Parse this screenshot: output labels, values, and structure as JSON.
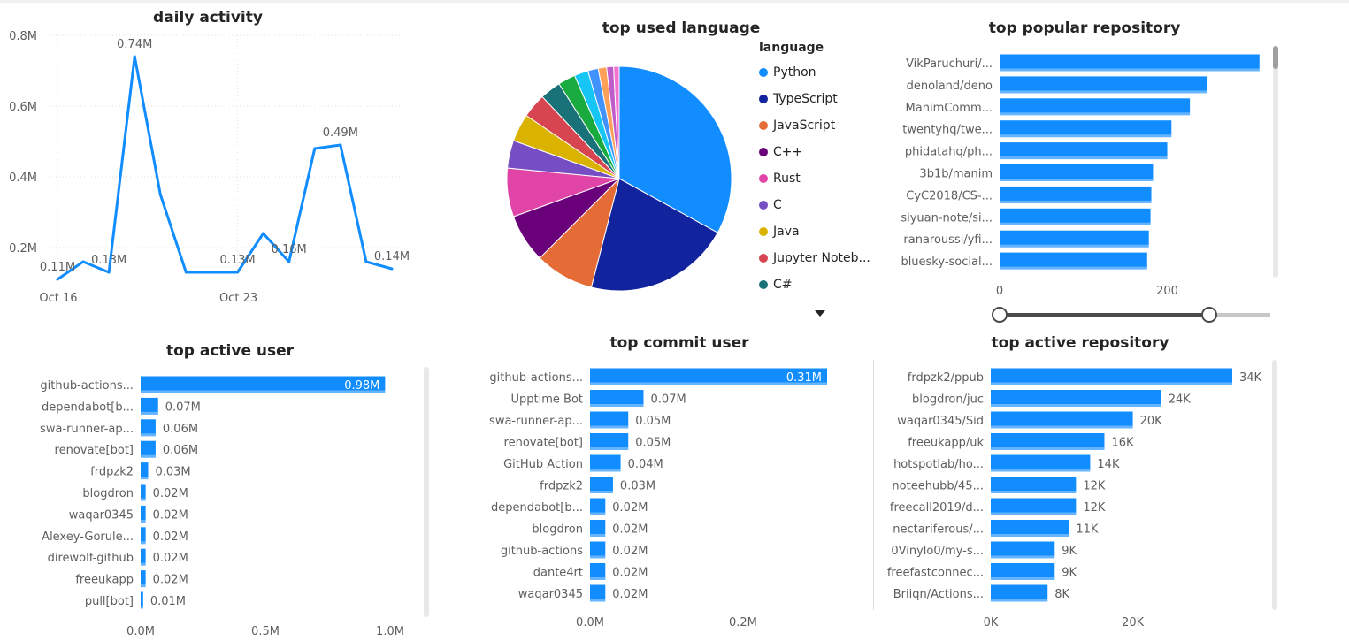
{
  "colors": {
    "bar": "#118DFF",
    "line": "#118DFF",
    "text": "#605E5C",
    "title": "#252423",
    "grid": "#e1dfdd"
  },
  "panels": {
    "daily_activity": {
      "title": "daily activity"
    },
    "top_language": {
      "title": "top used language",
      "legend_title": "language"
    },
    "top_popular_repo": {
      "title": "top popular repository"
    },
    "top_active_user": {
      "title": "top active user"
    },
    "top_commit_user": {
      "title": "top commit user"
    },
    "top_active_repo": {
      "title": "top active repository"
    }
  },
  "chart_data": [
    {
      "id": "daily_activity",
      "type": "line",
      "title": "daily activity",
      "values": [
        0.11,
        0.16,
        0.13,
        0.74,
        0.35,
        0.13,
        0.13,
        0.13,
        0.24,
        0.16,
        0.48,
        0.49,
        0.16,
        0.14
      ],
      "data_labels": [
        {
          "index": 0,
          "text": "0.11M"
        },
        {
          "index": 2,
          "text": "0.13M"
        },
        {
          "index": 3,
          "text": "0.74M"
        },
        {
          "index": 7,
          "text": "0.13M"
        },
        {
          "index": 9,
          "text": "0.16M"
        },
        {
          "index": 11,
          "text": "0.49M"
        },
        {
          "index": 13,
          "text": "0.14M"
        }
      ],
      "x_ticks": [
        {
          "index": 0,
          "label": "Oct 16"
        },
        {
          "index": 7,
          "label": "Oct 23"
        }
      ],
      "y_ticks": [
        {
          "value": 0.2,
          "label": "0.2M"
        },
        {
          "value": 0.4,
          "label": "0.4M"
        },
        {
          "value": 0.6,
          "label": "0.6M"
        },
        {
          "value": 0.8,
          "label": "0.8M"
        }
      ],
      "ylim": [
        0.1,
        0.8
      ]
    },
    {
      "id": "top_language",
      "type": "pie",
      "title": "top used language",
      "legend_title": "language",
      "slices": [
        {
          "label": "Python",
          "value": 33,
          "color": "#118DFF"
        },
        {
          "label": "TypeScript",
          "value": 21,
          "color": "#12239E"
        },
        {
          "label": "JavaScript",
          "value": 8.5,
          "color": "#E66C37"
        },
        {
          "label": "C++",
          "value": 7,
          "color": "#6B007B"
        },
        {
          "label": "Rust",
          "value": 7,
          "color": "#E044A7"
        },
        {
          "label": "C",
          "value": 4,
          "color": "#744EC2"
        },
        {
          "label": "Java",
          "value": 4,
          "color": "#D9B300"
        },
        {
          "label": "Jupyter Noteb...",
          "value": 3.5,
          "color": "#D64550"
        },
        {
          "label": "C#",
          "value": 3,
          "color": "#197278"
        },
        {
          "label": "",
          "value": 2.5,
          "color": "#1AAB40"
        },
        {
          "label": "",
          "value": 2,
          "color": "#15C6F4"
        },
        {
          "label": "",
          "value": 1.5,
          "color": "#4092FF"
        },
        {
          "label": "",
          "value": 1.2,
          "color": "#FFA058"
        },
        {
          "label": "",
          "value": 1,
          "color": "#BE5DC9"
        },
        {
          "label": "",
          "value": 0.8,
          "color": "#F472D0"
        }
      ]
    },
    {
      "id": "top_popular_repo",
      "type": "bar",
      "orientation": "horizontal",
      "title": "top popular repository",
      "categories": [
        "VikParuchuri/...",
        "denoland/deno",
        "ManimComm...",
        "twentyhq/twe...",
        "phidatahq/ph...",
        "3b1b/manim",
        "CyC2018/CS-...",
        "siyuan-note/si...",
        "ranaroussi/yfi...",
        "bluesky-social..."
      ],
      "values": [
        310,
        248,
        227,
        205,
        200,
        183,
        181,
        180,
        178,
        176
      ],
      "x_ticks": [
        {
          "value": 0,
          "label": "0"
        },
        {
          "value": 200,
          "label": "200"
        }
      ],
      "xlim": [
        0,
        325
      ]
    },
    {
      "id": "top_active_user",
      "type": "bar",
      "orientation": "horizontal",
      "title": "top active user",
      "categories": [
        "github-actions...",
        "dependabot[b...",
        "swa-runner-ap...",
        "renovate[bot]",
        "frdpzk2",
        "blogdron",
        "waqar0345",
        "Alexey-Gorule...",
        "direwolf-github",
        "freeukapp",
        "pull[bot]"
      ],
      "values": [
        0.98,
        0.07,
        0.06,
        0.06,
        0.03,
        0.02,
        0.02,
        0.02,
        0.02,
        0.02,
        0.01
      ],
      "data_labels": [
        "0.98M",
        "0.07M",
        "0.06M",
        "0.06M",
        "0.03M",
        "0.02M",
        "0.02M",
        "0.02M",
        "0.02M",
        "0.02M",
        "0.01M"
      ],
      "x_ticks": [
        {
          "value": 0,
          "label": "0.0M"
        },
        {
          "value": 0.5,
          "label": "0.5M"
        },
        {
          "value": 1,
          "label": "1.0M"
        }
      ],
      "xlim": [
        0,
        1
      ]
    },
    {
      "id": "top_commit_user",
      "type": "bar",
      "orientation": "horizontal",
      "title": "top commit user",
      "categories": [
        "github-actions...",
        "Upptime Bot",
        "swa-runner-ap...",
        "renovate[bot]",
        "GitHub Action",
        "frdpzk2",
        "dependabot[b...",
        "blogdron",
        "github-actions",
        "dante4rt",
        "waqar0345"
      ],
      "values": [
        0.31,
        0.07,
        0.05,
        0.05,
        0.04,
        0.03,
        0.02,
        0.02,
        0.02,
        0.02,
        0.02
      ],
      "data_labels": [
        "0.31M",
        "0.07M",
        "0.05M",
        "0.05M",
        "0.04M",
        "0.03M",
        "0.02M",
        "0.02M",
        "0.02M",
        "0.02M",
        "0.02M"
      ],
      "x_ticks": [
        {
          "value": 0,
          "label": "0.0M"
        },
        {
          "value": 0.2,
          "label": "0.2M"
        }
      ],
      "xlim": [
        0,
        0.31
      ]
    },
    {
      "id": "top_active_repo",
      "type": "bar",
      "orientation": "horizontal",
      "title": "top active repository",
      "categories": [
        "frdpzk2/ppub",
        "blogdron/juc",
        "waqar0345/Sid",
        "freeukapp/uk",
        "hotspotlab/ho...",
        "noteehubb/45...",
        "freecall2019/d...",
        "nectariferous/...",
        "0Vinylo0/my-s...",
        "freefastconnec...",
        "Briiqn/Actions..."
      ],
      "values": [
        34,
        24,
        20,
        16,
        14,
        12,
        12,
        11,
        9,
        9,
        8
      ],
      "data_labels": [
        "34K",
        "24K",
        "20K",
        "16K",
        "14K",
        "12K",
        "12K",
        "11K",
        "9K",
        "9K",
        "8K"
      ],
      "x_ticks": [
        {
          "value": 0,
          "label": "0K"
        },
        {
          "value": 20,
          "label": "20K"
        }
      ],
      "xlim": [
        0,
        34
      ]
    }
  ]
}
